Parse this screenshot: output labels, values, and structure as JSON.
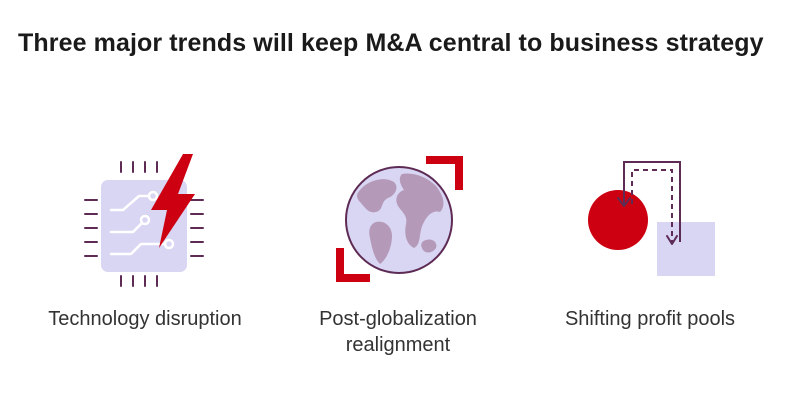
{
  "header": {
    "title": "Three major trends will keep M&A central to business strategy"
  },
  "colors": {
    "accent_red": "#cc0011",
    "lavender": "#d9d6f4",
    "purple_dark": "#5e2b55",
    "continent_purple": "#b49ab8"
  },
  "trends": [
    {
      "label": "Technology disruption",
      "icon": "chip-lightning-icon"
    },
    {
      "label": "Post-globalization\nrealignment",
      "icon": "globe-icon"
    },
    {
      "label": "Shifting profit pools",
      "icon": "flow-circle-square-icon"
    }
  ]
}
